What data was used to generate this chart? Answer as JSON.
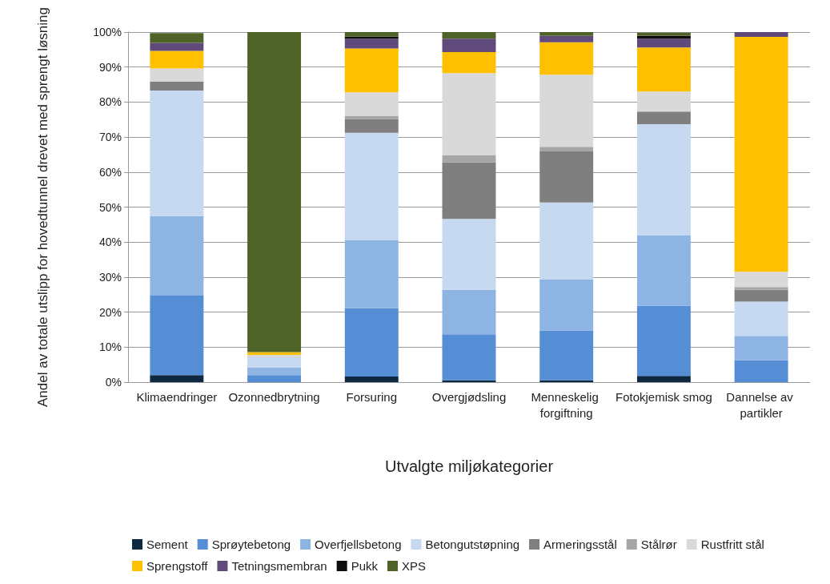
{
  "chart_data": {
    "type": "bar",
    "stacked": true,
    "xlabel": "Utvalgte miljøkategorier",
    "ylabel": "Andel av totale utslipp for hovedtunnel drevet med sprengt løsning",
    "categories": [
      "Klimaendringer",
      "Ozonnedbrytning",
      "Forsuring",
      "Overgjødsling",
      "Menneskelig forgiftning",
      "Fotokjemisk smog",
      "Dannelse av partikler"
    ],
    "series": [
      {
        "name": "Sement",
        "color": "#0e2841",
        "values": [
          2,
          0,
          1.6,
          0.5,
          0.5,
          1.8,
          0
        ]
      },
      {
        "name": "Sprøytebetong",
        "color": "#558ed5",
        "values": [
          22.7,
          2,
          19.5,
          13.2,
          14.2,
          20,
          6.3
        ]
      },
      {
        "name": "Overfjellsbetong",
        "color": "#8eb4e3",
        "values": [
          22.7,
          2.1,
          19.4,
          12.7,
          14.7,
          20.2,
          6.9
        ]
      },
      {
        "name": "Betongutstøpning",
        "color": "#c6d9f1",
        "values": [
          35.9,
          3,
          30.7,
          20.2,
          21.9,
          31.7,
          9.8
        ]
      },
      {
        "name": "Armeringsstål",
        "color": "#7f7f7f",
        "values": [
          2.5,
          0,
          4,
          16.2,
          14.6,
          3.6,
          3.4
        ]
      },
      {
        "name": "Stålrør",
        "color": "#a6a6a6",
        "values": [
          null,
          0,
          0.9,
          2.1,
          1.3,
          null,
          0.8
        ]
      },
      {
        "name": "Rustfritt stål",
        "color": "#d9d9d9",
        "values": [
          3.8,
          0.7,
          6.7,
          23.4,
          20.6,
          5.7,
          4.3
        ]
      },
      {
        "name": "Sprengstoff",
        "color": "#ffc000",
        "values": [
          5,
          0.8,
          12.5,
          6,
          9.3,
          12.6,
          67.1
        ]
      },
      {
        "name": "Tetningsmembran",
        "color": "#604a7b",
        "values": [
          2.3,
          0,
          2.8,
          3.8,
          1.8,
          2.5,
          1.4
        ]
      },
      {
        "name": "Pukk",
        "color": "#0d0d0d",
        "values": [
          0,
          0,
          0.6,
          0,
          0,
          0.8,
          0
        ]
      },
      {
        "name": "XPS",
        "color": "#4f6228",
        "values": [
          2.8,
          91.4,
          1.3,
          1.9,
          1.1,
          0.9,
          0
        ]
      }
    ],
    "ylim": [
      0,
      100
    ],
    "yticks": [
      {
        "value": 0,
        "label": "0%"
      },
      {
        "value": 10,
        "label": "10%"
      },
      {
        "value": 20,
        "label": "20%"
      },
      {
        "value": 30,
        "label": "30%"
      },
      {
        "value": 40,
        "label": "40%"
      },
      {
        "value": 50,
        "label": "50%"
      },
      {
        "value": 60,
        "label": "60%"
      },
      {
        "value": 70,
        "label": "70%"
      },
      {
        "value": 80,
        "label": "80%"
      },
      {
        "value": 90,
        "label": "90%"
      },
      {
        "value": 100,
        "label": "100%"
      }
    ],
    "grid": "y",
    "legend": "bottom"
  }
}
